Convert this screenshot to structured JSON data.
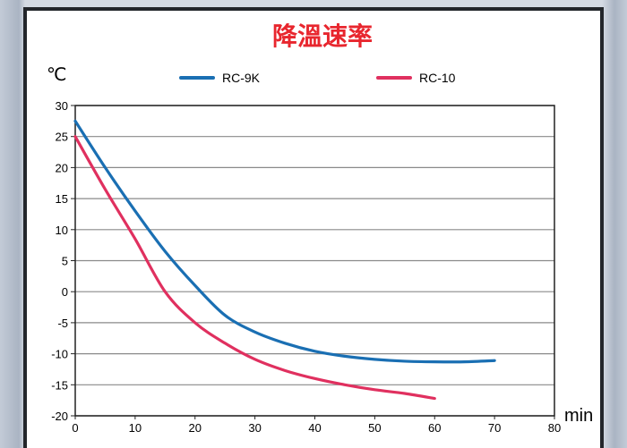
{
  "chart_data": {
    "type": "line",
    "title": "降溫速率",
    "ylabel": "℃",
    "xlabel": "min",
    "xlim": [
      0,
      80
    ],
    "ylim": [
      -20,
      30
    ],
    "x_ticks": [
      0,
      10,
      20,
      30,
      40,
      50,
      60,
      70,
      80
    ],
    "y_ticks": [
      30,
      25,
      20,
      15,
      10,
      5,
      0,
      -5,
      -10,
      -15,
      -20
    ],
    "grid": true,
    "legend_position": "top",
    "series": [
      {
        "name": "RC-9K",
        "color": "#1a6fb3",
        "x": [
          0,
          5,
          10,
          15,
          20,
          25,
          30,
          35,
          40,
          45,
          50,
          55,
          60,
          65,
          70
        ],
        "y": [
          27.5,
          20,
          13,
          6.5,
          1,
          -3.8,
          -6.5,
          -8.3,
          -9.6,
          -10.4,
          -10.9,
          -11.2,
          -11.3,
          -11.3,
          -11.1
        ]
      },
      {
        "name": "RC-10",
        "color": "#e0305f",
        "x": [
          0,
          5,
          10,
          15,
          20,
          25,
          30,
          35,
          40,
          45,
          50,
          55,
          60
        ],
        "y": [
          25,
          16.5,
          8.5,
          0,
          -5,
          -8.3,
          -10.9,
          -12.7,
          -14,
          -15,
          -15.8,
          -16.4,
          -17.2
        ]
      }
    ]
  },
  "colors": {
    "title": "#e8262e",
    "grid": "#8a8a8a",
    "axis": "#222222"
  }
}
